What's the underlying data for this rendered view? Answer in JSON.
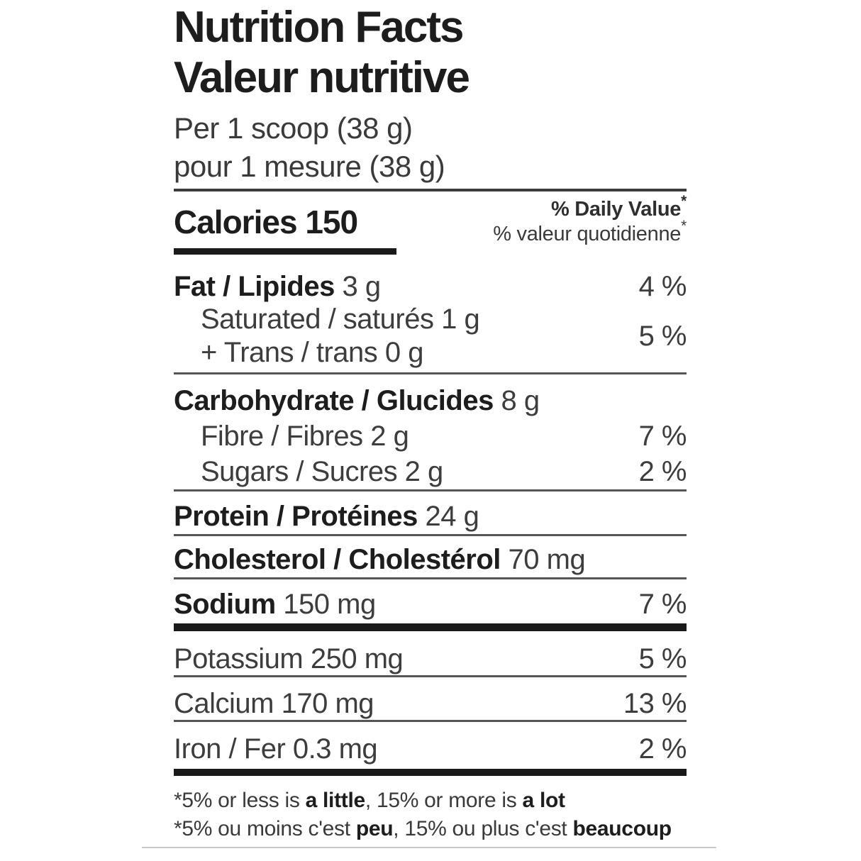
{
  "page": {
    "background_color": "#ffffff",
    "text_color": "#3d3d3d",
    "bold_text_color": "#1d1d1d",
    "thick_bar_color": "#1a1a1a",
    "thin_rule_color": "#555555"
  },
  "header": {
    "title_en": "Nutrition Facts",
    "title_fr": "Valeur nutritive",
    "serving_en": "Per 1 scoop (38 g)",
    "serving_fr": "pour 1 mesure (38 g)"
  },
  "calories": {
    "label": "Calories",
    "value": "150"
  },
  "daily_value": {
    "en": "% Daily Value",
    "fr": "% valeur quotidienne",
    "asterisk": "*"
  },
  "rows": {
    "fat": {
      "name": "Fat / Lipides",
      "amount": " 3 g",
      "dv": "4 %"
    },
    "saturated": {
      "line1": "Saturated / saturés 1 g",
      "line2": "+ Trans / trans 0 g",
      "dv": "5 %"
    },
    "carbohydrate": {
      "name": "Carbohydrate / Glucides",
      "amount": " 8 g"
    },
    "fibre": {
      "name": "Fibre / Fibres 2 g",
      "dv": "7 %"
    },
    "sugars": {
      "name": "Sugars / Sucres 2 g",
      "dv": "2 %"
    },
    "protein": {
      "name": "Protein / Protéines",
      "amount": " 24 g"
    },
    "cholesterol": {
      "name": "Cholesterol / Cholestérol",
      "amount": " 70 mg"
    },
    "sodium": {
      "name": "Sodium",
      "amount": " 150 mg",
      "dv": "7 %"
    },
    "potassium": {
      "name": "Potassium 250 mg",
      "dv": "5 %"
    },
    "calcium": {
      "name": "Calcium 170 mg",
      "dv": "13 %"
    },
    "iron": {
      "name": "Iron / Fer 0.3 mg",
      "dv": "2 %"
    }
  },
  "footnotes": {
    "en": {
      "pre": "*5% or less is ",
      "bold1": "a little",
      "mid": ", 15% or more is ",
      "bold2": "a lot"
    },
    "fr": {
      "pre": "*5% ou moins c'est ",
      "bold1": "peu",
      "mid": ", 15% ou plus c'est ",
      "bold2": "beaucoup"
    }
  }
}
